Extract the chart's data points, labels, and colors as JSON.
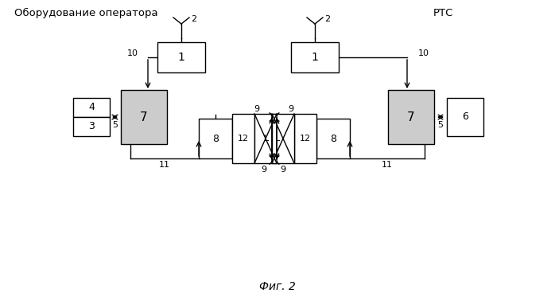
{
  "title_left": "Оборудование оператора",
  "title_right": "РТС",
  "fig_label": "Фиг. 2",
  "bg_color": "#ffffff",
  "line_color": "#000000"
}
